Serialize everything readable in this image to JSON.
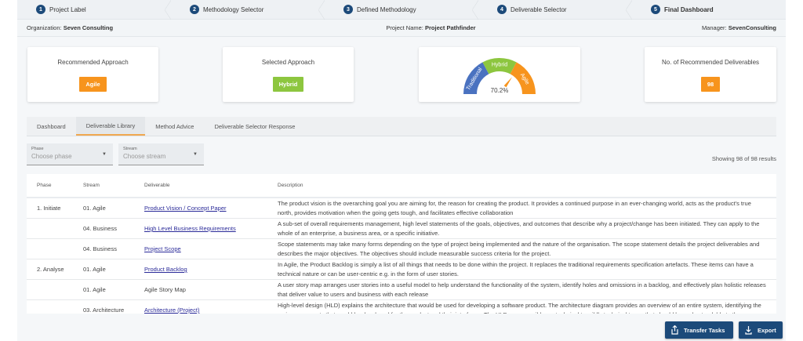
{
  "steps": [
    {
      "num": "1",
      "label": "Project Label"
    },
    {
      "num": "2",
      "label": "Methodology Selector"
    },
    {
      "num": "3",
      "label": "Defined Methodology"
    },
    {
      "num": "4",
      "label": "Deliverable Selector"
    },
    {
      "num": "5",
      "label": "Final Dashboard"
    }
  ],
  "info": {
    "org_label": "Organization:",
    "org": "Seven Consulting",
    "project_label": "Project Name:",
    "project": "Project Pathfinder",
    "manager_label": "Manager:",
    "manager": "SevenConsulting"
  },
  "cards": {
    "recommended": {
      "title": "Recommended Approach",
      "value": "Agile",
      "color": "#f7941d"
    },
    "selected": {
      "title": "Selected Approach",
      "value": "Hybrid",
      "color": "#8dc63f"
    },
    "gauge": {
      "segments": [
        {
          "label": "Traditional",
          "color": "#4a72c0"
        },
        {
          "label": "Hybrid",
          "color": "#8dc63f"
        },
        {
          "label": "Agile",
          "color": "#f7941d"
        }
      ],
      "value_label": "70.2%",
      "value": 70.2
    },
    "deliverables": {
      "title": "No. of Recommended Deliverables",
      "value": "98",
      "color": "#f7941d"
    }
  },
  "tabs": [
    {
      "label": "Dashboard"
    },
    {
      "label": "Deliverable Library",
      "active": true
    },
    {
      "label": "Method Advice"
    },
    {
      "label": "Deliverable Selector Response"
    }
  ],
  "filters": {
    "phase": {
      "label": "Phase",
      "placeholder": "Choose phase"
    },
    "stream": {
      "label": "Stream",
      "placeholder": "Choose stream"
    }
  },
  "results": "Showing 98 of 98 results",
  "table": {
    "headers": [
      "Phase",
      "Stream",
      "Deliverable",
      "Description"
    ],
    "rows": [
      {
        "phase": "1. Initiate",
        "stream": "01. Agile",
        "deliverable": "Product Vision / Concept Paper",
        "link": true,
        "description": "The product vision is the overarching goal you are aiming for, the reason for creating the product. It provides a continued purpose in an ever-changing world, acts as the product's true north, provides motivation when the going gets tough, and facilitates effective collaboration"
      },
      {
        "phase": "",
        "stream": "04. Business",
        "deliverable": "High Level Business Requirements",
        "link": true,
        "description": "A sub-set of overall requirements management, high level statements of the goals, objectives, and outcomes that describe why a project/change has been initiated. They can apply to the whole of an enterprise, a business area, or a specific initiative."
      },
      {
        "phase": "",
        "stream": "04. Business",
        "deliverable": "Project Scope",
        "link": true,
        "description": "Scope statements may take many forms depending on the type of project being implemented and the nature of the organisation. The scope statement details the project deliverables and describes the major objectives. The objectives should include measurable success criteria for the project."
      },
      {
        "phase": "2. Analyse",
        "stream": "01. Agile",
        "deliverable": "Product Backlog",
        "link": true,
        "description": "In Agile, the Product Backlog is simply a list of all things that needs to be done within the project. It replaces the traditional requirements specification artefacts. These items can have a technical nature or can be user-centric e.g. in the form of user stories."
      },
      {
        "phase": "",
        "stream": "01. Agile",
        "deliverable": "Agile Story Map",
        "link": false,
        "description": "A user story map arranges user stories into a useful model to help understand the functionality of the system, identify holes and omissions in a backlog, and effectively plan holistic releases that deliver value to users and business with each release"
      },
      {
        "phase": "",
        "stream": "03. Architecture",
        "deliverable": "Architecture (Project)",
        "link": true,
        "description": "High-level design (HLD) explains the architecture that would be used for developing a software product. The architecture diagram provides an overview of an entire system, identifying the main components that would be developed for the product and their interfaces. The HLD uses possibly nontechnical to mildly technical terms that should be understandable to the"
      }
    ]
  },
  "buttons": {
    "transfer": "Transfer Tasks",
    "export": "Export"
  }
}
